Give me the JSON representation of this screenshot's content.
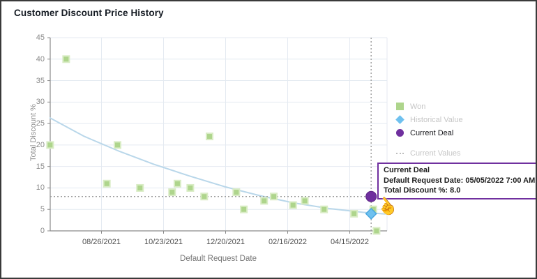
{
  "window": {
    "title": "Customer Discount Price History"
  },
  "chart_data": {
    "type": "scatter",
    "title": "Customer Discount Price History",
    "xlabel": "Default Request Date",
    "ylabel": "Total Discount %",
    "ylim": [
      0,
      45
    ],
    "yticks": [
      0,
      5,
      10,
      15,
      20,
      25,
      30,
      35,
      40,
      45
    ],
    "xticks": [
      "08/26/2021",
      "10/23/2021",
      "12/20/2021",
      "02/16/2022",
      "04/15/2022"
    ],
    "grid": true,
    "legend_position": "right",
    "series": [
      {
        "name": "Won",
        "marker": "square",
        "color": "#aed58c",
        "halo": "#d9ecc5",
        "points": [
          [
            "07/09/2021",
            20
          ],
          [
            "07/24/2021",
            40
          ],
          [
            "08/31/2021",
            11
          ],
          [
            "09/10/2021",
            20
          ],
          [
            "10/01/2021",
            10
          ],
          [
            "10/31/2021",
            9
          ],
          [
            "11/05/2021",
            11
          ],
          [
            "11/17/2021",
            10
          ],
          [
            "11/30/2021",
            8
          ],
          [
            "12/05/2021",
            22
          ],
          [
            "12/30/2021",
            9
          ],
          [
            "01/06/2022",
            5
          ],
          [
            "01/25/2022",
            7
          ],
          [
            "02/03/2022",
            8
          ],
          [
            "02/21/2022",
            6
          ],
          [
            "03/04/2022",
            7
          ],
          [
            "03/22/2022",
            5
          ],
          [
            "04/19/2022",
            4
          ],
          [
            "05/07/2022",
            5
          ],
          [
            "05/10/2022",
            0
          ]
        ]
      },
      {
        "name": "Historical Value",
        "marker": "diamond",
        "color": "#6fc1ef",
        "stroke": "#49a7e0",
        "points": [
          [
            "05/05/2022",
            4
          ]
        ]
      },
      {
        "name": "Current Deal",
        "marker": "circle",
        "color": "#6f2f9e",
        "stroke": "#5c2584",
        "points": [
          [
            "05/05/2022",
            8
          ]
        ]
      },
      {
        "name": "Trend",
        "marker": "line",
        "color": "#b9d7ea",
        "points": [
          [
            "07/09/2021",
            26.3
          ],
          [
            "08/10/2021",
            22.0
          ],
          [
            "09/12/2021",
            18.5
          ],
          [
            "10/14/2021",
            15.5
          ],
          [
            "11/16/2021",
            12.8
          ],
          [
            "12/19/2021",
            10.3
          ],
          [
            "01/21/2022",
            8.2
          ],
          [
            "02/22/2022",
            6.5
          ],
          [
            "03/27/2022",
            5.2
          ],
          [
            "04/28/2022",
            4.3
          ],
          [
            "05/20/2022",
            3.9
          ]
        ]
      },
      {
        "name": "Current Values",
        "marker": "crosshair",
        "style": "dotted",
        "color": "#9b9b9b",
        "x": "05/05/2022",
        "y": 8
      }
    ]
  },
  "legend": {
    "items": [
      {
        "label": "Won",
        "dimmed": true
      },
      {
        "label": "Historical Value",
        "dimmed": true
      },
      {
        "label": "Current Deal",
        "dimmed": false
      },
      {
        "label": "Current Values",
        "dimmed": true
      }
    ]
  },
  "tooltip": {
    "title": "Current Deal",
    "line1": "Default Request Date: 05/05/2022 7:00 AM",
    "line2": "Total Discount %: 8.0"
  },
  "cursor_glyph": "☝",
  "colors": {
    "won": "#aed58c",
    "historical": "#6fc1ef",
    "current_deal": "#6f2f9e",
    "trend_line": "#b9d7ea",
    "crosshair": "#9b9b9b",
    "tooltip_border": "#70309f",
    "gridline": "#e4eaf1",
    "axis": "#8a8a8a"
  }
}
